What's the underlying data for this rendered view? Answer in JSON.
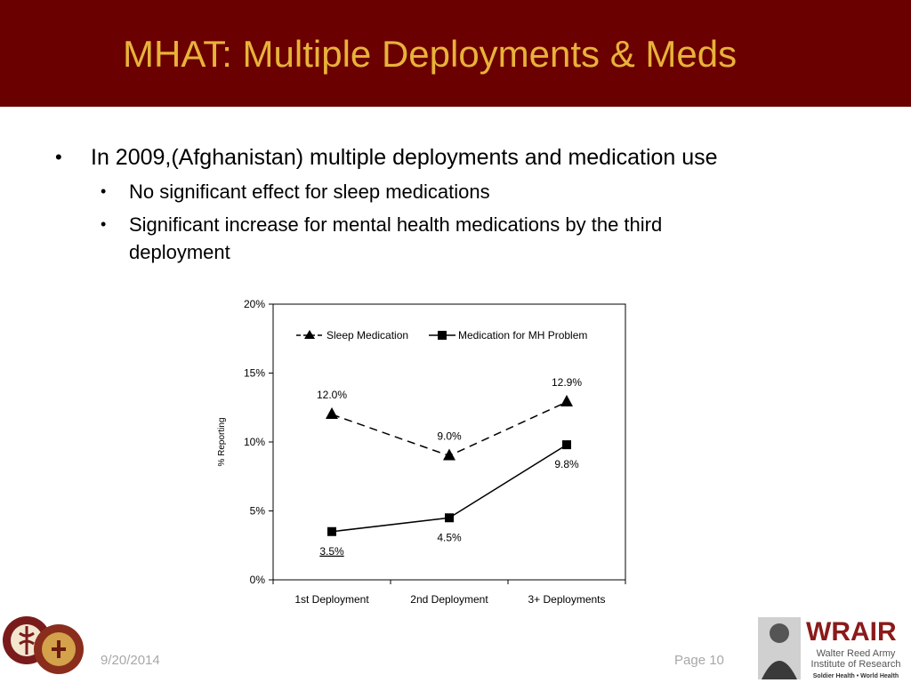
{
  "slide": {
    "title": "MHAT: Multiple Deployments & Meds",
    "bullets": [
      "In 2009,(Afghanistan) multiple deployments and medication use",
      "No significant effect for sleep medications",
      "Significant increase for mental health medications by the third",
      "deployment"
    ],
    "bullet_glyph": "•",
    "date": "9/20/2014",
    "page": "Page 10"
  },
  "logos": {
    "wrair_text": "WRAIR",
    "wrair_line1": "Walter Reed Army",
    "wrair_line2": "Institute of Research",
    "wrair_tagline": "Soldier Health • World Health"
  },
  "colors": {
    "header_bg": "#6b0000",
    "title": "#e8b23a",
    "footer_text": "#a8a8a8",
    "wrair_red": "#8b1a1a"
  },
  "chart_data": {
    "type": "line",
    "categories": [
      "1st Deployment",
      "2nd Deployment",
      "3+ Deployments"
    ],
    "series": [
      {
        "name": "Sleep Medication",
        "values": [
          12.0,
          9.0,
          12.9
        ],
        "labels": [
          "12.0%",
          "9.0%",
          "12.9%"
        ],
        "marker": "triangle",
        "dash": true
      },
      {
        "name": "Medication for MH Problem",
        "values": [
          3.5,
          4.5,
          9.8
        ],
        "labels": [
          "3.5%",
          "4.5%",
          "9.8%"
        ],
        "marker": "square",
        "dash": false
      }
    ],
    "yticks": [
      "0%",
      "5%",
      "10%",
      "15%",
      "20%"
    ],
    "ylim": [
      0,
      20
    ],
    "ylabel": "% Reporting",
    "xlabel": "",
    "legend": "top",
    "grid": false
  }
}
